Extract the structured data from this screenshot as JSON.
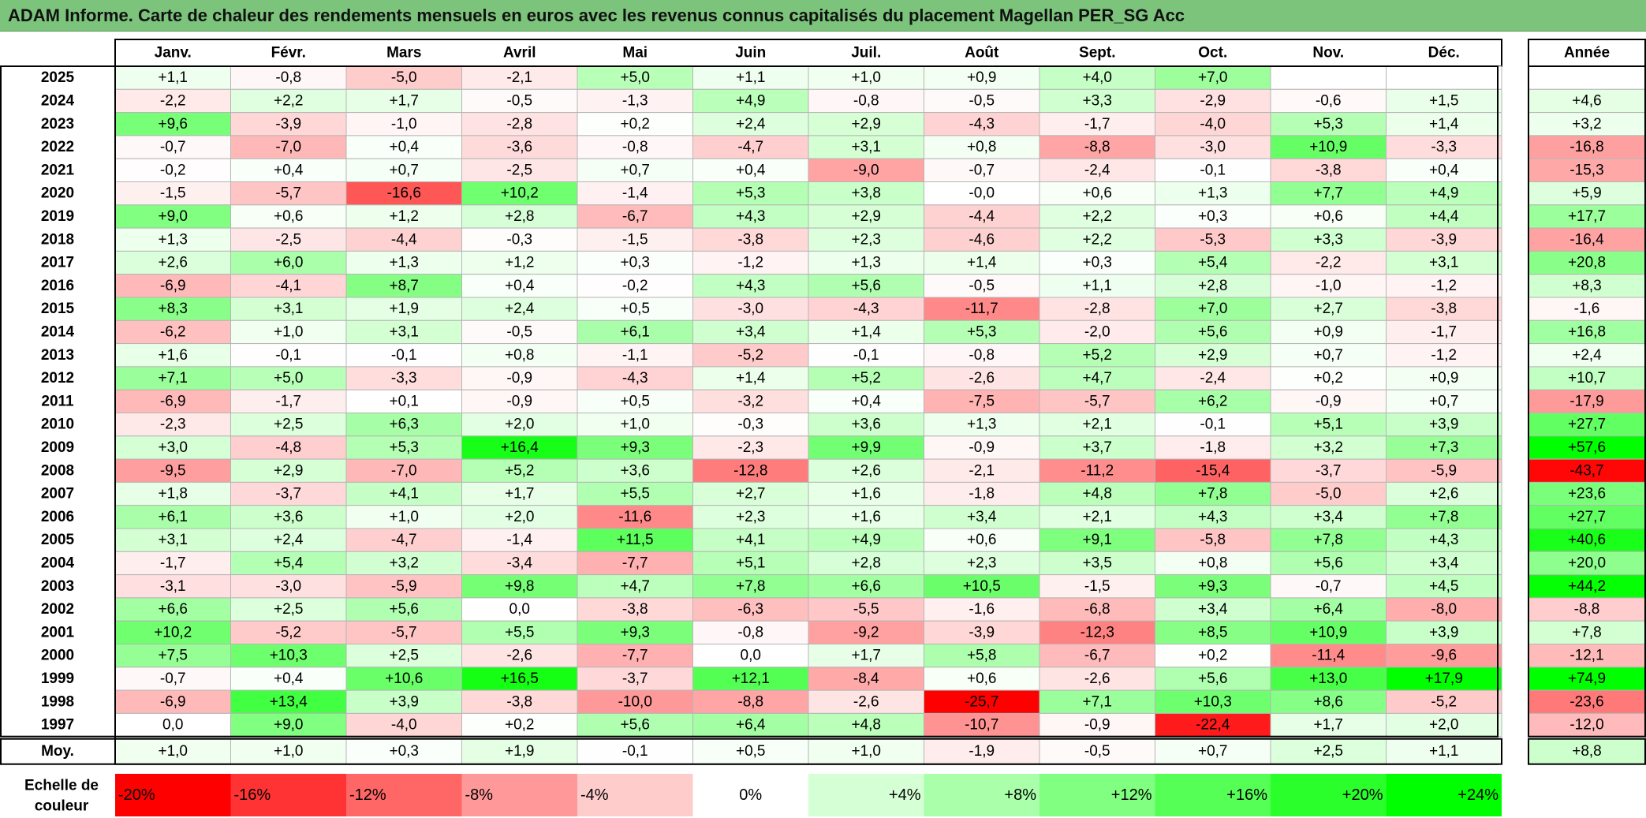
{
  "title": "ADAM Informe. Carte de chaleur des rendements mensuels en euros avec les revenus connus capitalisés du placement Magellan PER_SG Acc",
  "colors": {
    "negative": "#ff0000",
    "neutral": "#ffffff",
    "positive": "#00ff00",
    "title_bg": "#7cc47c"
  },
  "chart_data": {
    "type": "heatmap",
    "columns": [
      "Janv.",
      "Févr.",
      "Mars",
      "Avril",
      "Mai",
      "Juin",
      "Juil.",
      "Août",
      "Sept.",
      "Oct.",
      "Nov.",
      "Déc."
    ],
    "year_header": "Année",
    "rows": [
      {
        "label": "2025",
        "values": [
          "+1,1",
          "-0,8",
          "-5,0",
          "-2,1",
          "+5,0",
          "+1,1",
          "+1,0",
          "+0,9",
          "+4,0",
          "+7,0",
          "",
          ""
        ],
        "year": ""
      },
      {
        "label": "2024",
        "values": [
          "-2,2",
          "+2,2",
          "+1,7",
          "-0,5",
          "-1,3",
          "+4,9",
          "-0,8",
          "-0,5",
          "+3,3",
          "-2,9",
          "-0,6",
          "+1,5"
        ],
        "year": "+4,6"
      },
      {
        "label": "2023",
        "values": [
          "+9,6",
          "-3,9",
          "-1,0",
          "-2,8",
          "+0,2",
          "+2,4",
          "+2,9",
          "-4,3",
          "-1,7",
          "-4,0",
          "+5,3",
          "+1,4"
        ],
        "year": "+3,2"
      },
      {
        "label": "2022",
        "values": [
          "-0,7",
          "-7,0",
          "+0,4",
          "-3,6",
          "-0,8",
          "-4,7",
          "+3,1",
          "+0,8",
          "-8,8",
          "-3,0",
          "+10,9",
          "-3,3"
        ],
        "year": "-16,8"
      },
      {
        "label": "2021",
        "values": [
          "-0,2",
          "+0,4",
          "+0,7",
          "-2,5",
          "+0,7",
          "+0,4",
          "-9,0",
          "-0,7",
          "-2,4",
          "-0,1",
          "-3,8",
          "+0,4"
        ],
        "year": "-15,3"
      },
      {
        "label": "2020",
        "values": [
          "-1,5",
          "-5,7",
          "-16,6",
          "+10,2",
          "-1,4",
          "+5,3",
          "+3,8",
          "-0,0",
          "+0,6",
          "+1,3",
          "+7,7",
          "+4,9"
        ],
        "year": "+5,9"
      },
      {
        "label": "2019",
        "values": [
          "+9,0",
          "+0,6",
          "+1,2",
          "+2,8",
          "-6,7",
          "+4,3",
          "+2,9",
          "-4,4",
          "+2,2",
          "+0,3",
          "+0,6",
          "+4,4"
        ],
        "year": "+17,7"
      },
      {
        "label": "2018",
        "values": [
          "+1,3",
          "-2,5",
          "-4,4",
          "-0,3",
          "-1,5",
          "-3,8",
          "+2,3",
          "-4,6",
          "+2,2",
          "-5,3",
          "+3,3",
          "-3,9"
        ],
        "year": "-16,4"
      },
      {
        "label": "2017",
        "values": [
          "+2,6",
          "+6,0",
          "+1,3",
          "+1,2",
          "+0,3",
          "-1,2",
          "+1,3",
          "+1,4",
          "+0,3",
          "+5,4",
          "-2,2",
          "+3,1"
        ],
        "year": "+20,8"
      },
      {
        "label": "2016",
        "values": [
          "-6,9",
          "-4,1",
          "+8,7",
          "+0,4",
          "-0,2",
          "+4,3",
          "+5,6",
          "-0,5",
          "+1,1",
          "+2,8",
          "-1,0",
          "-1,2"
        ],
        "year": "+8,3"
      },
      {
        "label": "2015",
        "values": [
          "+8,3",
          "+3,1",
          "+1,9",
          "+2,4",
          "+0,5",
          "-3,0",
          "-4,3",
          "-11,7",
          "-2,8",
          "+7,0",
          "+2,7",
          "-3,8"
        ],
        "year": "-1,6"
      },
      {
        "label": "2014",
        "values": [
          "-6,2",
          "+1,0",
          "+3,1",
          "-0,5",
          "+6,1",
          "+3,4",
          "+1,4",
          "+5,3",
          "-2,0",
          "+5,6",
          "+0,9",
          "-1,7"
        ],
        "year": "+16,8"
      },
      {
        "label": "2013",
        "values": [
          "+1,6",
          "-0,1",
          "-0,1",
          "+0,8",
          "-1,1",
          "-5,2",
          "-0,1",
          "-0,8",
          "+5,2",
          "+2,9",
          "+0,7",
          "-1,2"
        ],
        "year": "+2,4"
      },
      {
        "label": "2012",
        "values": [
          "+7,1",
          "+5,0",
          "-3,3",
          "-0,9",
          "-4,3",
          "+1,4",
          "+5,2",
          "-2,6",
          "+4,7",
          "-2,4",
          "+0,2",
          "+0,9"
        ],
        "year": "+10,7"
      },
      {
        "label": "2011",
        "values": [
          "-6,9",
          "-1,7",
          "+0,1",
          "-0,9",
          "+0,5",
          "-3,2",
          "+0,4",
          "-7,5",
          "-5,7",
          "+6,2",
          "-0,9",
          "+0,7"
        ],
        "year": "-17,9"
      },
      {
        "label": "2010",
        "values": [
          "-2,3",
          "+2,5",
          "+6,3",
          "+2,0",
          "+1,0",
          "-0,3",
          "+3,6",
          "+1,3",
          "+2,1",
          "-0,1",
          "+5,1",
          "+3,9"
        ],
        "year": "+27,7"
      },
      {
        "label": "2009",
        "values": [
          "+3,0",
          "-4,8",
          "+5,3",
          "+16,4",
          "+9,3",
          "-2,3",
          "+9,9",
          "-0,9",
          "+3,7",
          "-1,8",
          "+3,2",
          "+7,3"
        ],
        "year": "+57,6"
      },
      {
        "label": "2008",
        "values": [
          "-9,5",
          "+2,9",
          "-7,0",
          "+5,2",
          "+3,6",
          "-12,8",
          "+2,6",
          "-2,1",
          "-11,2",
          "-15,4",
          "-3,7",
          "-5,9"
        ],
        "year": "-43,7"
      },
      {
        "label": "2007",
        "values": [
          "+1,8",
          "-3,7",
          "+4,1",
          "+1,7",
          "+5,5",
          "+2,7",
          "+1,6",
          "-1,8",
          "+4,8",
          "+7,8",
          "-5,0",
          "+2,6"
        ],
        "year": "+23,6"
      },
      {
        "label": "2006",
        "values": [
          "+6,1",
          "+3,6",
          "+1,0",
          "+2,0",
          "-11,6",
          "+2,3",
          "+1,6",
          "+3,4",
          "+2,1",
          "+4,3",
          "+3,4",
          "+7,8"
        ],
        "year": "+27,7"
      },
      {
        "label": "2005",
        "values": [
          "+3,1",
          "+2,4",
          "-4,7",
          "-1,4",
          "+11,5",
          "+4,1",
          "+4,9",
          "+0,6",
          "+9,1",
          "-5,8",
          "+7,8",
          "+4,3"
        ],
        "year": "+40,6"
      },
      {
        "label": "2004",
        "values": [
          "-1,7",
          "+5,4",
          "+3,2",
          "-3,4",
          "-7,7",
          "+5,1",
          "+2,8",
          "+2,3",
          "+3,5",
          "+0,8",
          "+5,6",
          "+3,4"
        ],
        "year": "+20,0"
      },
      {
        "label": "2003",
        "values": [
          "-3,1",
          "-3,0",
          "-5,9",
          "+9,8",
          "+4,7",
          "+7,8",
          "+6,6",
          "+10,5",
          "-1,5",
          "+9,3",
          "-0,7",
          "+4,5"
        ],
        "year": "+44,2"
      },
      {
        "label": "2002",
        "values": [
          "+6,6",
          "+2,5",
          "+5,6",
          "0,0",
          "-3,8",
          "-6,3",
          "-5,5",
          "-1,6",
          "-6,8",
          "+3,4",
          "+6,4",
          "-8,0"
        ],
        "year": "-8,8"
      },
      {
        "label": "2001",
        "values": [
          "+10,2",
          "-5,2",
          "-5,7",
          "+5,5",
          "+9,3",
          "-0,8",
          "-9,2",
          "-3,9",
          "-12,3",
          "+8,5",
          "+10,9",
          "+3,9"
        ],
        "year": "+7,8"
      },
      {
        "label": "2000",
        "values": [
          "+7,5",
          "+10,3",
          "+2,5",
          "-2,6",
          "-7,7",
          "0,0",
          "+1,7",
          "+5,8",
          "-6,7",
          "+0,2",
          "-11,4",
          "-9,6"
        ],
        "year": "-12,1"
      },
      {
        "label": "1999",
        "values": [
          "-0,7",
          "+0,4",
          "+10,6",
          "+16,5",
          "-3,7",
          "+12,1",
          "-8,4",
          "+0,6",
          "-2,6",
          "+5,6",
          "+13,0",
          "+17,9"
        ],
        "year": "+74,9"
      },
      {
        "label": "1998",
        "values": [
          "-6,9",
          "+13,4",
          "+3,9",
          "-3,8",
          "-10,0",
          "-8,8",
          "-2,6",
          "-25,7",
          "+7,1",
          "+10,3",
          "+8,6",
          "-5,2"
        ],
        "year": "-23,6"
      },
      {
        "label": "1997",
        "values": [
          "0,0",
          "+9,0",
          "-4,0",
          "+0,2",
          "+5,6",
          "+6,4",
          "+4,8",
          "-10,7",
          "-0,9",
          "-22,4",
          "+1,7",
          "+2,0"
        ],
        "year": "-12,0"
      }
    ],
    "average": {
      "label": "Moy.",
      "values": [
        "+1,0",
        "+1,0",
        "+0,3",
        "+1,9",
        "-0,1",
        "+0,5",
        "+1,0",
        "-1,9",
        "-0,5",
        "+0,7",
        "+2,5",
        "+1,1"
      ],
      "year": "+8,8"
    },
    "scale_label": [
      "Echelle de",
      "couleur"
    ],
    "scale": [
      {
        "label": "-20%",
        "value": -20
      },
      {
        "label": "-16%",
        "value": -16
      },
      {
        "label": "-12%",
        "value": -12
      },
      {
        "label": "-8%",
        "value": -8
      },
      {
        "label": "-4%",
        "value": -4
      },
      {
        "label": "0%",
        "value": 0
      },
      {
        "label": "+4%",
        "value": 4
      },
      {
        "label": "+8%",
        "value": 8
      },
      {
        "label": "+12%",
        "value": 12
      },
      {
        "label": "+16%",
        "value": 16
      },
      {
        "label": "+20%",
        "value": 20
      },
      {
        "label": "+24%",
        "value": 24
      }
    ]
  }
}
